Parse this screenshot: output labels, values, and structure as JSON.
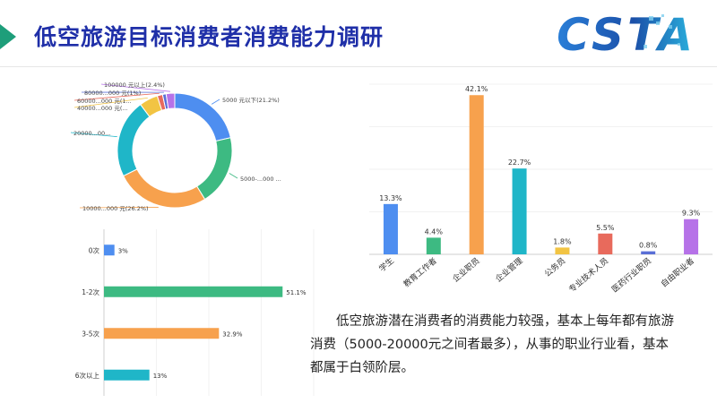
{
  "header": {
    "title": "低空旅游目标消费者消费能力调研",
    "logo_text": "CSTA",
    "accent_color": "#1e9e7a",
    "title_color": "#1f2fa8"
  },
  "chart_data": [
    {
      "type": "pie",
      "variant": "donut",
      "title": "",
      "slices": [
        {
          "label": "5000 元以下(21.2%)",
          "value": 21.2,
          "color": "#4e8ef0"
        },
        {
          "label": "5000-...000 ...",
          "value": 19.6,
          "color": "#3dba82"
        },
        {
          "label": "10000...000 元(26.2%)",
          "value": 26.2,
          "color": "#f7a14d"
        },
        {
          "label": "20000...00...",
          "value": 21.9,
          "color": "#1fb6c8"
        },
        {
          "label": "40000...000 元(...",
          "value": 5.2,
          "color": "#f2c443"
        },
        {
          "label": "60000...000 元(1...",
          "value": 1.5,
          "color": "#e86a5c"
        },
        {
          "label": "80000...000 元(1%)",
          "value": 1.0,
          "color": "#5a6fd6"
        },
        {
          "label": "100000 元以上(2.4%)",
          "value": 2.4,
          "color": "#b672e8"
        }
      ]
    },
    {
      "type": "bar",
      "title": "",
      "xlabel": "",
      "ylabel": "",
      "categories": [
        "学生",
        "教育工作者",
        "企业职员",
        "企业管理",
        "公务员",
        "专业技术人员",
        "医药行业职员",
        "自由职业者"
      ],
      "values": [
        13.3,
        4.4,
        42.1,
        22.7,
        1.8,
        5.5,
        0.8,
        9.3
      ],
      "value_labels": [
        "13.3%",
        "4.4%",
        "42.1%",
        "22.7%",
        "1.8%",
        "5.5%",
        "0.8%",
        "9.3%"
      ],
      "colors": [
        "#4e8ef0",
        "#3dba82",
        "#f7a14d",
        "#1fb6c8",
        "#f2c443",
        "#e86a5c",
        "#5a6fd6",
        "#b672e8"
      ],
      "ylim": [
        0,
        45
      ],
      "grid": true
    },
    {
      "type": "bar",
      "orientation": "horizontal",
      "title": "",
      "xlabel": "",
      "ylabel": "",
      "categories": [
        "0次",
        "1-2次",
        "3-5次",
        "6次以上"
      ],
      "values": [
        3,
        51.1,
        32.9,
        13
      ],
      "value_labels": [
        "3%",
        "51.1%",
        "32.9%",
        "13%"
      ],
      "colors": [
        "#4e8ef0",
        "#3dba82",
        "#f7a14d",
        "#1fb6c8"
      ],
      "xlim": [
        0,
        60
      ],
      "grid": true
    }
  ],
  "summary": {
    "text": "低空旅游潜在消费者的消费能力较强，基本上每年都有旅游消费（5000-20000元之间者最多），从事的职业行业看，基本都属于白领阶层。"
  }
}
